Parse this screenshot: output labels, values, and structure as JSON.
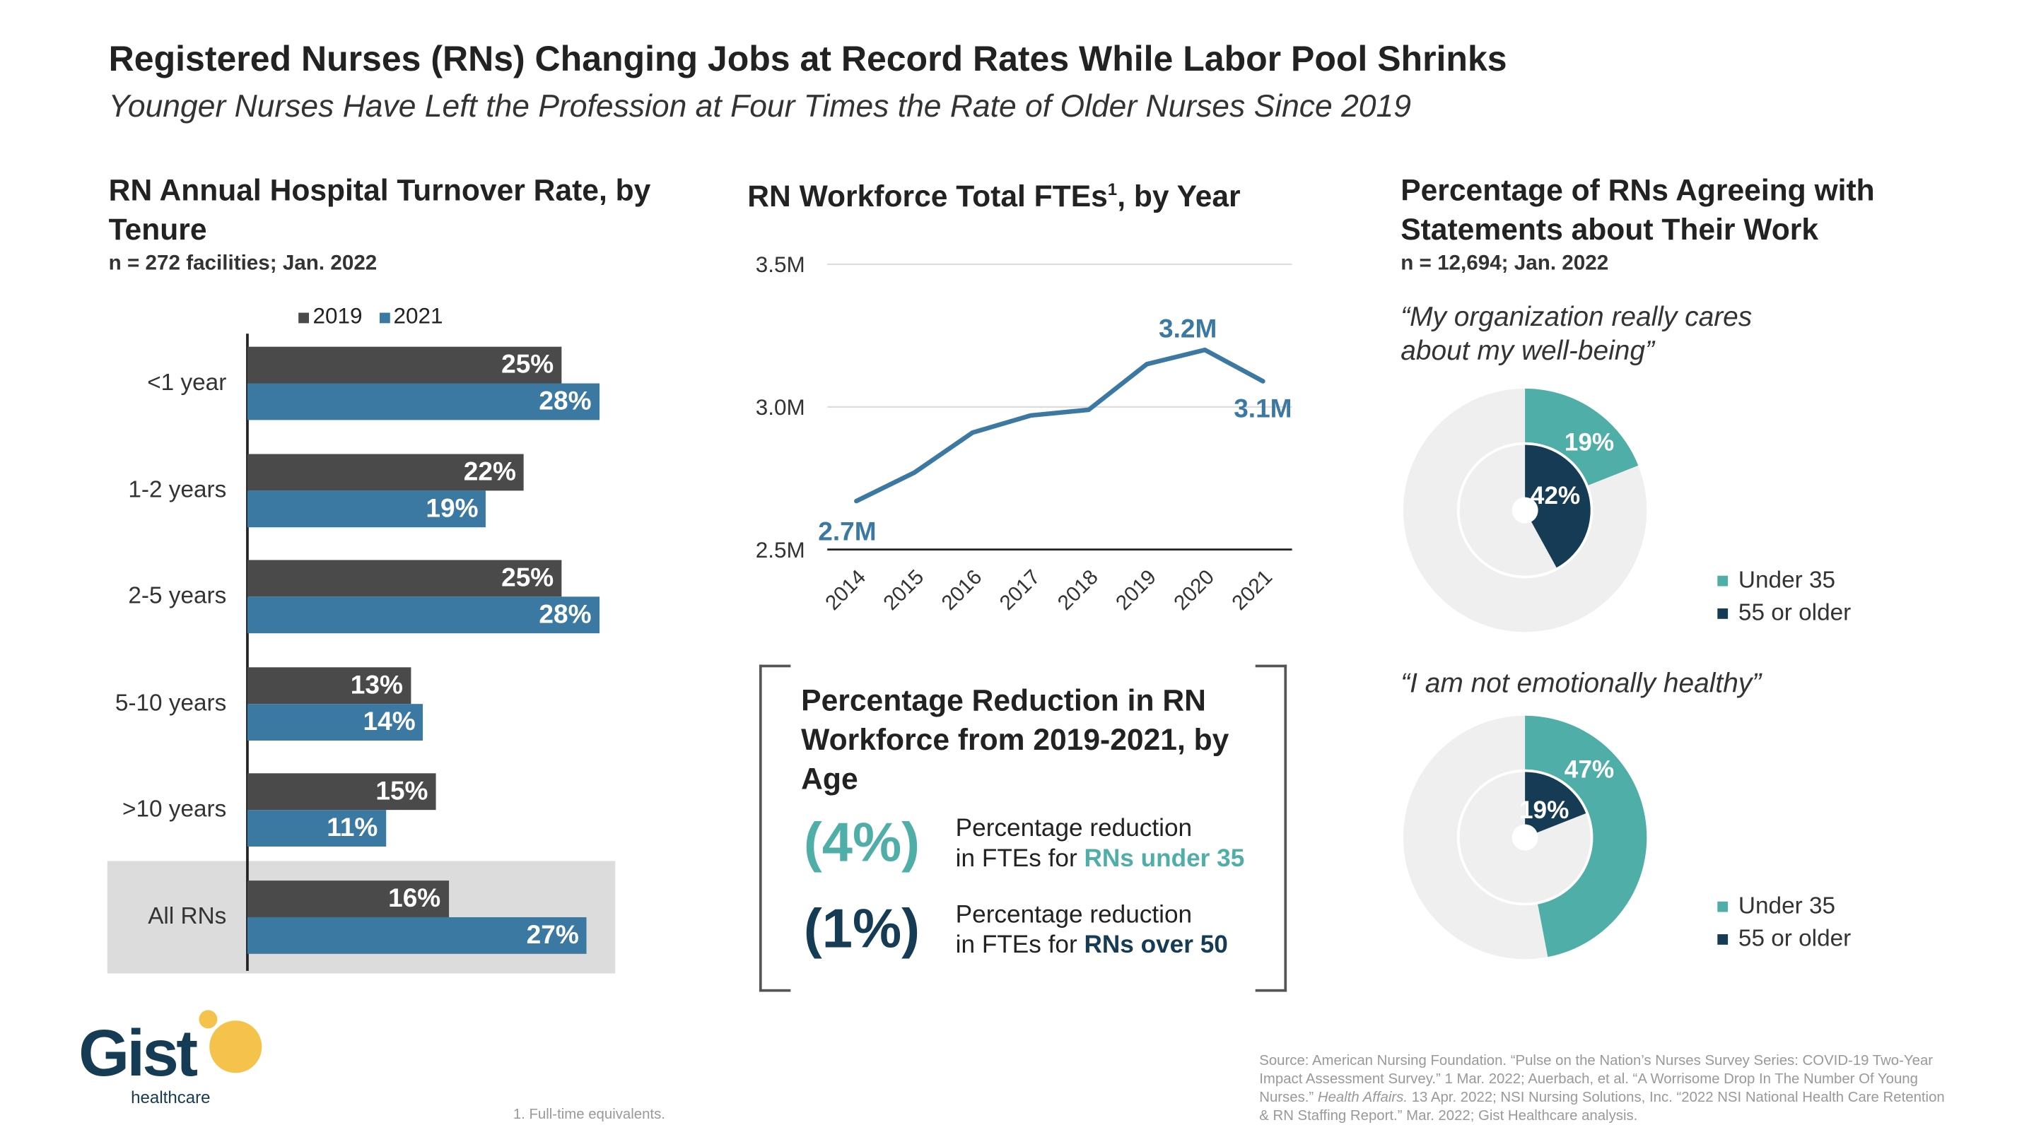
{
  "header": {
    "title": "Registered Nurses (RNs) Changing Jobs at Record Rates While Labor Pool Shrinks",
    "subtitle": "Younger Nurses Have Left the Profession at Four Times the Rate of Older Nurses Since 2019"
  },
  "colors": {
    "dark_gray": "#4a4a4a",
    "blue": "#3b79a3",
    "teal": "#4faea8",
    "navy": "#163c55",
    "light_gray": "#efefef"
  },
  "chart_data": [
    {
      "type": "bar",
      "title": "RN Annual Hospital Turnover Rate, by Tenure",
      "note": "n = 272 facilities; Jan. 2022",
      "categories": [
        "<1 year",
        "1-2 years",
        "2-5 years",
        "5-10 years",
        ">10 years",
        "All RNs"
      ],
      "series": [
        {
          "name": "2019",
          "values": [
            25,
            22,
            25,
            13,
            15,
            16
          ],
          "labels": [
            "25%",
            "22%",
            "25%",
            "13%",
            "15%",
            "16%"
          ]
        },
        {
          "name": "2021",
          "values": [
            28,
            19,
            28,
            14,
            11,
            27
          ],
          "labels": [
            "28%",
            "19%",
            "28%",
            "14%",
            "11%",
            "27%"
          ]
        }
      ],
      "legend": "top",
      "unit": "%"
    },
    {
      "type": "line",
      "title": "RN Workforce Total FTEs",
      "title_sup": "1",
      "title_suffix": ", by Year",
      "x": [
        "2014",
        "2015",
        "2016",
        "2017",
        "2018",
        "2019",
        "2020",
        "2021"
      ],
      "values": [
        2.67,
        2.77,
        2.91,
        2.97,
        2.99,
        3.15,
        3.2,
        3.09
      ],
      "data_labels": {
        "first": "2.7M",
        "peak": "3.2M",
        "last": "3.1M"
      },
      "yticks": [
        "2.5M",
        "3.0M",
        "3.5M"
      ],
      "ylim": [
        2.5,
        3.5
      ],
      "grid": true
    },
    {
      "type": "pie",
      "title": "Percentage of RNs Agreeing with Statements about Their Work",
      "note": "n = 12,694; Jan. 2022",
      "charts": [
        {
          "quote": "“My organization really cares about my well-being”",
          "series": [
            {
              "name": "Under 35",
              "value": 19,
              "label": "19%"
            },
            {
              "name": "55 or older",
              "value": 42,
              "label": "42%"
            }
          ]
        },
        {
          "quote": "“I am not emotionally healthy”",
          "series": [
            {
              "name": "Under 35",
              "value": 47,
              "label": "47%"
            },
            {
              "name": "55 or older",
              "value": 19,
              "label": "19%"
            }
          ]
        }
      ]
    }
  ],
  "reduction_box": {
    "title": "Percentage Reduction in RN Workforce from 2019-2021, by Age",
    "items": [
      {
        "value": "(4%)",
        "line1": "Percentage reduction",
        "line2_prefix": "in FTEs for ",
        "line2_bold": "RNs under 35"
      },
      {
        "value": "(1%)",
        "line1": "Percentage reduction",
        "line2_prefix": "in FTEs for ",
        "line2_bold": "RNs over 50"
      }
    ]
  },
  "footer": {
    "logo_text": "Gist",
    "logo_sub": "healthcare",
    "footnote": "1.  Full-time equivalents.",
    "source_a": "Source: American Nursing Foundation. “Pulse on the Nation’s Nurses Survey Series: COVID-19 Two-Year Impact Assessment Survey.” 1 Mar. 2022; Auerbach, et al. “A Worrisome Drop In The Number Of Young Nurses.” ",
    "source_italic": "Health Affairs.",
    "source_b": " 13 Apr. 2022; NSI Nursing Solutions, Inc. “2022 NSI National Health Care Retention & RN Staffing Report.” Mar. 2022; Gist Healthcare analysis."
  }
}
